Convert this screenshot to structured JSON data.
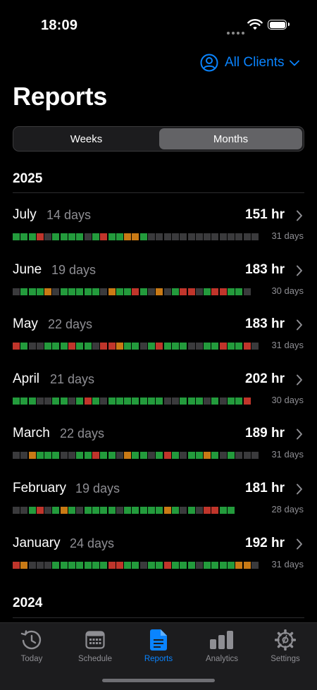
{
  "status": {
    "time": "18:09"
  },
  "header": {
    "client_filter": "All Clients"
  },
  "page": {
    "title": "Reports"
  },
  "segment": {
    "weeks": "Weeks",
    "months": "Months",
    "selected": "Months"
  },
  "colors": {
    "accent": "#0a84ff",
    "green": "#239b3c",
    "red": "#c0352b",
    "orange": "#c97a15",
    "empty": "#3a3a3c"
  },
  "years": [
    "2025",
    "2024"
  ],
  "months": [
    {
      "name": "July",
      "days": "14 days",
      "hours": "151 hr",
      "total": "31 days",
      "pattern": "gggrdggggdgrggoogdddddddddddddd"
    },
    {
      "name": "June",
      "days": "19 days",
      "hours": "183 hr",
      "total": "30 days",
      "pattern": "dgggodgggggdoggrgdodgrrdgrrggd"
    },
    {
      "name": "May",
      "days": "22 days",
      "hours": "183 hr",
      "total": "31 days",
      "pattern": "rgddgggrggdrroggdgrgggddggrggrd"
    },
    {
      "name": "April",
      "days": "21 days",
      "hours": "202 hr",
      "total": "30 days",
      "pattern": "gggddggdgrgdgggggggddgggdgdggr"
    },
    {
      "name": "March",
      "days": "22 days",
      "hours": "189 hr",
      "total": "31 days",
      "pattern": "ddogggddggrggdoggdgrgdggogdgddd"
    },
    {
      "name": "February",
      "days": "19 days",
      "hours": "181 hr",
      "total": "28 days",
      "pattern": "ddgrdgogdggggdgggggogdgdrrgg"
    },
    {
      "name": "January",
      "days": "24 days",
      "hours": "192 hr",
      "total": "31 days",
      "pattern": "rodddgggggggrrggdggrgggdggggood"
    }
  ],
  "tabs": [
    {
      "label": "Today",
      "icon": "clock-history-icon"
    },
    {
      "label": "Schedule",
      "icon": "calendar-icon"
    },
    {
      "label": "Reports",
      "icon": "document-icon"
    },
    {
      "label": "Analytics",
      "icon": "bar-chart-icon"
    },
    {
      "label": "Settings",
      "icon": "gear-icon"
    }
  ],
  "active_tab": "Reports"
}
